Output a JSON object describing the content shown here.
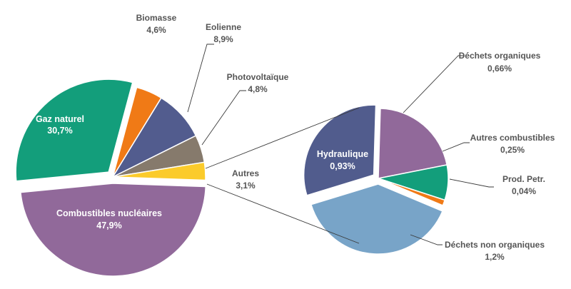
{
  "chart_data": [
    {
      "type": "pie",
      "title": "",
      "slices": [
        {
          "label": "Combustibles nucléaires",
          "value": 47.9,
          "value_label": "47,9%",
          "color": "#91699a",
          "exploded": true
        },
        {
          "label": "Gaz naturel",
          "value": 30.7,
          "value_label": "30,7%",
          "color": "#139e7b",
          "exploded": true
        },
        {
          "label": "Biomasse",
          "value": 4.6,
          "value_label": "4,6%",
          "color": "#f07a16"
        },
        {
          "label": "Eolienne",
          "value": 8.9,
          "value_label": "8,9%",
          "color": "#525c8e"
        },
        {
          "label": "Photovoltaïque",
          "value": 4.8,
          "value_label": "4,8%",
          "color": "#867a6c"
        },
        {
          "label": "Autres",
          "value": 3.1,
          "value_label": "3,1%",
          "color": "#fbcb2b"
        }
      ]
    },
    {
      "type": "pie",
      "title": "",
      "slices": [
        {
          "label": "Hydraulique",
          "value": 0.93,
          "value_label": "0,93%",
          "color": "#515c8d",
          "exploded": true
        },
        {
          "label": "Déchets organiques",
          "value": 0.66,
          "value_label": "0,66%",
          "color": "#91699a"
        },
        {
          "label": "Autres combustibles",
          "value": 0.25,
          "value_label": "0,25%",
          "color": "#139e7b"
        },
        {
          "label": "Prod. Petr.",
          "value": 0.04,
          "value_label": "0,04%",
          "color": "#f07a16"
        },
        {
          "label": "Déchets non organiques",
          "value": 1.2,
          "value_label": "1,2%",
          "color": "#78a4c8",
          "exploded": true
        }
      ]
    }
  ]
}
